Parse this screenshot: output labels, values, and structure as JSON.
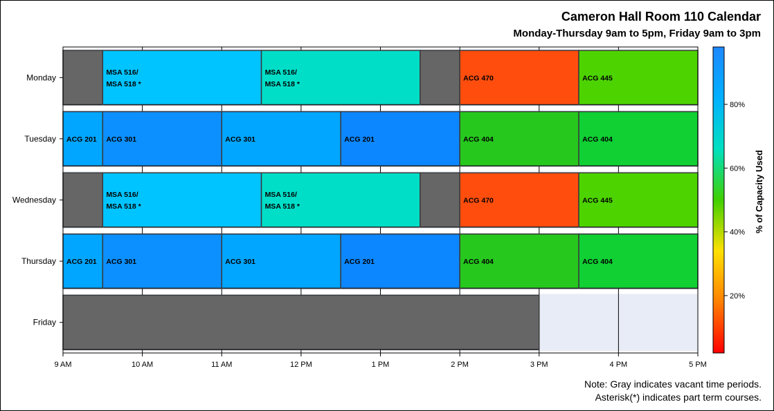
{
  "title": "Cameron Hall Room 110 Calendar",
  "subtitle": "Monday-Thursday 9am to 5pm, Friday 9am to 3pm",
  "notes": {
    "line1": "Note: Gray indicates vacant time periods.",
    "line2": "Asterisk(*) indicates part term courses."
  },
  "colors": {
    "vacant": "#666666",
    "row_background": "#e8ecf6",
    "gridline": "#000000"
  },
  "chart_data": {
    "type": "bar",
    "orientation": "horizontal-gantt",
    "days": [
      "Monday",
      "Tuesday",
      "Wednesday",
      "Thursday",
      "Friday"
    ],
    "x_ticks": [
      {
        "value": 9,
        "label": "9 AM"
      },
      {
        "value": 10,
        "label": "10 AM"
      },
      {
        "value": 11,
        "label": "11 AM"
      },
      {
        "value": 12,
        "label": "12 PM"
      },
      {
        "value": 13,
        "label": "1 PM"
      },
      {
        "value": 14,
        "label": "2 PM"
      },
      {
        "value": 15,
        "label": "3 PM"
      },
      {
        "value": 16,
        "label": "4 PM"
      },
      {
        "value": 17,
        "label": "5 PM"
      }
    ],
    "xlim": [
      9,
      17
    ],
    "grid": "vertical at each hour",
    "colorbar": {
      "label": "% of Capacity Used",
      "ticks": [
        "20%",
        "40%",
        "60%",
        "80%"
      ],
      "placement": "right",
      "stops": [
        "#ff0000",
        "#ff8000",
        "#ffe000",
        "#40d000",
        "#00e0c0",
        "#00b0ff",
        "#1e88ff"
      ]
    },
    "blocks": [
      {
        "day": "Monday",
        "start": 9.0,
        "end": 9.5,
        "lines": [],
        "color": "#666666"
      },
      {
        "day": "Monday",
        "start": 9.5,
        "end": 11.5,
        "lines": [
          "MSA 516/",
          "MSA 518 *"
        ],
        "color": "#00c4ff"
      },
      {
        "day": "Monday",
        "start": 11.5,
        "end": 13.5,
        "lines": [
          "MSA 516/",
          "MSA 518 *"
        ],
        "color": "#00dec8"
      },
      {
        "day": "Monday",
        "start": 13.5,
        "end": 14.0,
        "lines": [],
        "color": "#666666"
      },
      {
        "day": "Monday",
        "start": 14.0,
        "end": 15.5,
        "lines": [
          "ACG 470"
        ],
        "color": "#ff4d0d"
      },
      {
        "day": "Monday",
        "start": 15.5,
        "end": 17.0,
        "lines": [
          "ACG 445"
        ],
        "color": "#4dd400"
      },
      {
        "day": "Tuesday",
        "start": 9.0,
        "end": 9.5,
        "lines": [
          "ACG 201"
        ],
        "color": "#00a6ff"
      },
      {
        "day": "Tuesday",
        "start": 9.5,
        "end": 11.0,
        "lines": [
          "ACG 301"
        ],
        "color": "#0c90ff"
      },
      {
        "day": "Tuesday",
        "start": 11.0,
        "end": 12.5,
        "lines": [
          "ACG 301"
        ],
        "color": "#00a6ff"
      },
      {
        "day": "Tuesday",
        "start": 12.5,
        "end": 14.0,
        "lines": [
          "ACG 201"
        ],
        "color": "#0c87ff"
      },
      {
        "day": "Tuesday",
        "start": 14.0,
        "end": 15.5,
        "lines": [
          "ACG 404"
        ],
        "color": "#26c81e"
      },
      {
        "day": "Tuesday",
        "start": 15.5,
        "end": 17.0,
        "lines": [
          "ACG 404"
        ],
        "color": "#10d034"
      },
      {
        "day": "Wednesday",
        "start": 9.0,
        "end": 9.5,
        "lines": [],
        "color": "#666666"
      },
      {
        "day": "Wednesday",
        "start": 9.5,
        "end": 11.5,
        "lines": [
          "MSA 516/",
          "MSA 518 *"
        ],
        "color": "#00c4ff"
      },
      {
        "day": "Wednesday",
        "start": 11.5,
        "end": 13.5,
        "lines": [
          "MSA 516/",
          "MSA 518 *"
        ],
        "color": "#00dec8"
      },
      {
        "day": "Wednesday",
        "start": 13.5,
        "end": 14.0,
        "lines": [],
        "color": "#666666"
      },
      {
        "day": "Wednesday",
        "start": 14.0,
        "end": 15.5,
        "lines": [
          "ACG 470"
        ],
        "color": "#ff4d0d"
      },
      {
        "day": "Wednesday",
        "start": 15.5,
        "end": 17.0,
        "lines": [
          "ACG 445"
        ],
        "color": "#4dd400"
      },
      {
        "day": "Thursday",
        "start": 9.0,
        "end": 9.5,
        "lines": [
          "ACG 201"
        ],
        "color": "#00a6ff"
      },
      {
        "day": "Thursday",
        "start": 9.5,
        "end": 11.0,
        "lines": [
          "ACG 301"
        ],
        "color": "#0c90ff"
      },
      {
        "day": "Thursday",
        "start": 11.0,
        "end": 12.5,
        "lines": [
          "ACG 301"
        ],
        "color": "#00a6ff"
      },
      {
        "day": "Thursday",
        "start": 12.5,
        "end": 14.0,
        "lines": [
          "ACG 201"
        ],
        "color": "#0c87ff"
      },
      {
        "day": "Thursday",
        "start": 14.0,
        "end": 15.5,
        "lines": [
          "ACG 404"
        ],
        "color": "#26c81e"
      },
      {
        "day": "Thursday",
        "start": 15.5,
        "end": 17.0,
        "lines": [
          "ACG 404"
        ],
        "color": "#10d034"
      },
      {
        "day": "Friday",
        "start": 9.0,
        "end": 15.0,
        "lines": [],
        "color": "#666666"
      }
    ]
  }
}
